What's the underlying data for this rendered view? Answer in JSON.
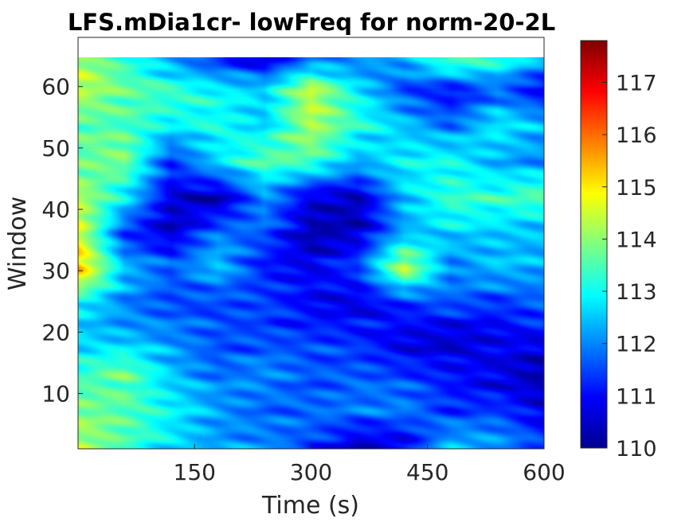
{
  "chart_data": {
    "type": "heatmap",
    "title": "LFS.mDia1cr- lowFreq for norm-20-2L",
    "xlabel": "Time (s)",
    "ylabel": "Window",
    "xlim": [
      0,
      600
    ],
    "ylim": [
      1,
      67
    ],
    "xticks": [
      150,
      300,
      450,
      600
    ],
    "yticks": [
      10,
      20,
      30,
      40,
      50,
      60
    ],
    "colormap": "jet",
    "clim": [
      110,
      117.8
    ],
    "colorbar_ticks": [
      110,
      111,
      112,
      113,
      114,
      115,
      116,
      117
    ],
    "grid": false,
    "time_points": [
      0,
      60,
      120,
      180,
      240,
      300,
      360,
      420,
      480,
      540,
      600
    ],
    "windows": [
      1,
      7,
      13,
      19,
      25,
      31,
      37,
      43,
      49,
      55,
      61,
      66
    ],
    "values": [
      [
        114.2,
        113.4,
        112.8,
        112.2,
        112.0,
        111.4,
        110.6,
        110.8,
        112.4,
        112.2,
        111.6
      ],
      [
        114.0,
        113.6,
        112.8,
        112.2,
        111.8,
        111.8,
        111.8,
        112.0,
        111.4,
        111.4,
        110.6
      ],
      [
        113.2,
        113.8,
        112.6,
        111.8,
        112.0,
        111.6,
        111.8,
        111.4,
        111.0,
        110.8,
        110.4
      ],
      [
        112.6,
        112.4,
        112.0,
        111.6,
        111.6,
        111.4,
        111.2,
        110.8,
        110.6,
        110.8,
        110.8
      ],
      [
        112.8,
        112.0,
        111.6,
        111.4,
        111.4,
        111.0,
        110.8,
        111.2,
        111.6,
        111.4,
        111.8
      ],
      [
        115.6,
        112.4,
        111.6,
        112.6,
        111.2,
        110.8,
        111.4,
        114.6,
        112.0,
        112.4,
        112.2
      ],
      [
        114.6,
        111.4,
        110.6,
        111.8,
        111.6,
        110.4,
        110.6,
        112.2,
        112.6,
        112.6,
        112.4
      ],
      [
        114.4,
        112.8,
        110.6,
        110.4,
        112.2,
        110.6,
        110.4,
        112.6,
        113.4,
        113.2,
        113.6
      ],
      [
        113.6,
        114.0,
        111.4,
        112.6,
        113.6,
        113.6,
        112.4,
        112.8,
        113.0,
        112.4,
        112.0
      ],
      [
        113.6,
        113.4,
        112.8,
        113.2,
        112.6,
        114.2,
        113.2,
        112.6,
        111.8,
        112.8,
        112.4
      ],
      [
        114.4,
        113.8,
        113.4,
        112.8,
        112.6,
        114.6,
        112.8,
        111.4,
        111.0,
        111.8,
        110.8
      ],
      [
        114.2,
        113.2,
        112.2,
        111.4,
        110.6,
        111.8,
        112.0,
        112.4,
        113.6,
        113.2,
        112.4
      ]
    ]
  }
}
